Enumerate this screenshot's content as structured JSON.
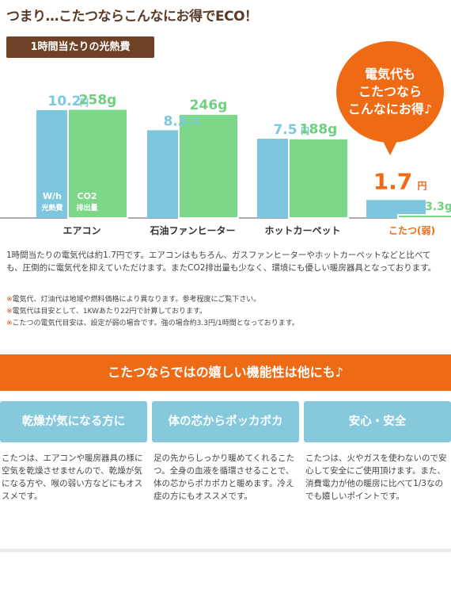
{
  "headline": "つまり…こたつならこんなにお得でECO！",
  "section_tag": "1時間当たりの光熱費",
  "bubble": {
    "lines": [
      "電気代も",
      "こたつなら",
      "こんなにお得♪"
    ]
  },
  "colors": {
    "accent": "#ee6a15",
    "cost_bar": "#7ec6dd",
    "co2_bar": "#7dd789",
    "cost_label": "#7cc8e0",
    "co2_label": "#6fd07f",
    "brown": "#6d4226",
    "feature_head": "#86c9dc"
  },
  "chart_data": {
    "type": "bar",
    "categories": [
      "エアコン",
      "石油ファンヒーター",
      "ホットカーペット",
      "こたつ(弱)"
    ],
    "series": [
      {
        "name": "W/h 光熱費",
        "unit": "円",
        "values": [
          10.2,
          8.3,
          7.5,
          1.7
        ]
      },
      {
        "name": "CO2 排出量",
        "unit": "g",
        "values": [
          258,
          246,
          188,
          3.3
        ]
      }
    ],
    "value_labels": {
      "cost": [
        "10.2",
        "8.3",
        "7.5",
        "1.7"
      ],
      "co2": [
        "258g",
        "246g",
        "188g",
        "3.3g"
      ]
    },
    "cost_unit": "円",
    "highlight_index": 3,
    "in_bar_labels": {
      "cost": [
        "W/h",
        "光熱費"
      ],
      "co2": [
        "CO2",
        "排出量"
      ]
    },
    "ylim_cost": [
      0,
      12
    ],
    "ylim_co2": [
      0,
      300
    ]
  },
  "description": "1時間当たりの電気代は約1.7円です。エアコンはもちろん、ガスファンヒーターやホットカーペットなどと比べても、圧倒的に電気代を抑えていただけます。またCO2排出量も少なく、環境にも優しい暖房器具となっております。",
  "notes": {
    "mark": "※",
    "items": [
      "電気代、灯油代は地域や燃料価格により異なります。参考程度にご覧下さい。",
      "電気代は目安として、1KWあたり22円で計算しております。",
      "こたつの電気代目安は、設定が弱の場合です。強の場合約3.3円/1時間となっております。"
    ]
  },
  "band_title": "こたつならではの嬉しい機能性は他にも♪",
  "features": [
    {
      "title": "乾燥が気になる方に",
      "text": "こたつは、エアコンや暖房器具の様に空気を乾燥させませんので、乾燥が気になる方や、喉の弱い方などにもオススメです。"
    },
    {
      "title": "体の芯からポッカポカ",
      "text": "足の先からしっかり暖めてくれるこたつ。全身の血液を循環させることで、体の芯からポカポカと暖めます。冷え症の方にもオススメです。"
    },
    {
      "title": "安心・安全",
      "text": "こたつは、火やガスを使わないので安心して安全にご使用頂けます。また、消費電力が他の暖房に比べて1/3なのでも嬉しいポイントです。"
    }
  ]
}
